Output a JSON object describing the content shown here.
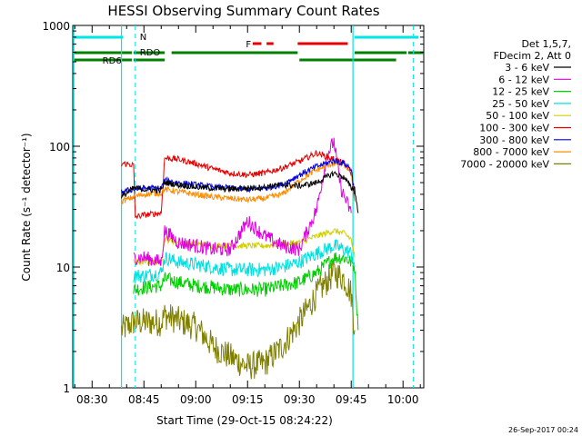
{
  "chart_data": {
    "type": "line",
    "title": "HESSI Observing Summary Count Rates",
    "xlabel": "Start Time (29-Oct-15 08:24:22)",
    "ylabel": "Count Rate (s⁻¹ detector⁻¹)",
    "x_ticks": [
      "08:30",
      "08:45",
      "09:00",
      "09:15",
      "09:30",
      "09:45",
      "10:00"
    ],
    "x_tick_minutes": [
      30,
      45,
      60,
      75,
      90,
      105,
      120
    ],
    "xlim_minutes": [
      24.4,
      126
    ],
    "y_scale": "log",
    "ylim": [
      1,
      1000
    ],
    "y_ticks": [
      "1",
      "10",
      "100",
      "1000"
    ],
    "legend_header": [
      "Det 1,5,7,",
      "FDecim 2, Att 0"
    ],
    "legend_position": "right",
    "timestamp": "26-Sep-2017 00:24",
    "flag_labels": {
      "night": "N",
      "flare": "F",
      "rdo": "RDO",
      "rd6": "RD6"
    },
    "flag_colors": {
      "night": "#00e5e5",
      "flare": "#e60000",
      "rdo": "#008000"
    },
    "night_segments": [
      [
        24.4,
        39
      ],
      [
        106,
        124.5
      ]
    ],
    "flare_segments": [
      [
        76.5,
        79
      ],
      [
        80.5,
        82.5
      ],
      [
        89.5,
        104
      ]
    ],
    "rdo_segments": [
      [
        24.4,
        41.5
      ],
      [
        42,
        51
      ],
      [
        53,
        89.5
      ],
      [
        106,
        121
      ],
      [
        121.5,
        126
      ]
    ],
    "rd6_segments": [
      [
        24.4,
        41.5
      ],
      [
        42,
        51
      ],
      [
        90,
        118
      ]
    ],
    "night_gap_lines": [
      38.5,
      105.5
    ],
    "dashed_lines": [
      42.5,
      123
    ],
    "series": [
      {
        "name": "3 - 6 keV",
        "color": "#000000",
        "x": [
          38.5,
          42,
          45,
          50,
          51,
          55,
          60,
          65,
          70,
          75,
          80,
          85,
          90,
          95,
          100,
          103,
          105,
          106,
          107
        ],
        "y": [
          38,
          45,
          44,
          43,
          50,
          48,
          46,
          45,
          44,
          45,
          46,
          48,
          47,
          50,
          60,
          55,
          45,
          45,
          28
        ]
      },
      {
        "name": "6 - 12 keV",
        "color": "#e000e0",
        "x": [
          42,
          45,
          50,
          51,
          55,
          60,
          65,
          70,
          75,
          80,
          85,
          90,
          95,
          98,
          100,
          102,
          105
        ],
        "y": [
          12,
          12,
          11,
          20,
          16,
          15,
          14,
          14,
          24,
          18,
          15,
          14,
          30,
          85,
          110,
          45,
          28
        ]
      },
      {
        "name": "12 - 25 keV",
        "color": "#00d000",
        "x": [
          42,
          45,
          50,
          51,
          55,
          60,
          65,
          70,
          75,
          80,
          85,
          90,
          95,
          100,
          103,
          105,
          106,
          107
        ],
        "y": [
          6.5,
          6.8,
          7.0,
          8.0,
          7.5,
          7.0,
          6.8,
          6.5,
          6.5,
          6.5,
          7.0,
          7.5,
          9,
          12,
          12,
          11,
          10,
          3
        ]
      },
      {
        "name": "25 - 50 keV",
        "color": "#00e0e0",
        "x": [
          42,
          45,
          50,
          51,
          55,
          60,
          65,
          70,
          75,
          80,
          85,
          90,
          95,
          100,
          103,
          105,
          106
        ],
        "y": [
          8.5,
          8.5,
          9,
          12,
          11,
          10.5,
          10,
          9.5,
          9.5,
          9.5,
          10,
          11,
          13,
          15,
          14,
          13,
          10
        ]
      },
      {
        "name": "50 - 100 keV",
        "color": "#d0d000",
        "x": [
          42,
          45,
          50,
          51,
          55,
          60,
          65,
          70,
          75,
          80,
          85,
          90,
          95,
          100,
          103,
          105,
          106
        ],
        "y": [
          11,
          11,
          11,
          17,
          16,
          15.5,
          15,
          15,
          15,
          15,
          15.5,
          16,
          18,
          20,
          19,
          17,
          12
        ]
      },
      {
        "name": "100 - 300 keV",
        "color": "#e60000",
        "x": [
          38.5,
          39,
          42,
          42.5,
          45,
          50,
          51,
          55,
          60,
          65,
          70,
          75,
          80,
          85,
          90,
          95,
          100,
          103,
          105,
          106
        ],
        "y": [
          70,
          72,
          70,
          26,
          27,
          28,
          80,
          78,
          72,
          65,
          60,
          58,
          60,
          66,
          75,
          88,
          78,
          72,
          60,
          35
        ]
      },
      {
        "name": "300 - 800 keV",
        "color": "#0000e0",
        "x": [
          38.5,
          42,
          45,
          50,
          51,
          55,
          60,
          65,
          70,
          75,
          80,
          85,
          90,
          95,
          100,
          103,
          105,
          106
        ],
        "y": [
          42,
          44,
          45,
          45,
          52,
          50,
          48,
          46,
          45,
          44,
          45,
          48,
          58,
          68,
          76,
          72,
          65,
          40
        ]
      },
      {
        "name": "800 - 7000 keV",
        "color": "#ff8c00",
        "x": [
          38.5,
          42,
          45,
          50,
          51,
          55,
          60,
          65,
          70,
          75,
          80,
          85,
          90,
          95,
          100,
          103,
          105,
          106
        ],
        "y": [
          35,
          38,
          40,
          41,
          44,
          42,
          40,
          38,
          37,
          36,
          37,
          40,
          52,
          64,
          72,
          70,
          62,
          35
        ]
      },
      {
        "name": "7000 - 20000 keV",
        "color": "#808000",
        "x": [
          38.5,
          42,
          45,
          50,
          51,
          55,
          60,
          62,
          65,
          70,
          75,
          80,
          85,
          90,
          95,
          100,
          103,
          105,
          106
        ],
        "y": [
          3,
          3.5,
          3.5,
          3.5,
          4,
          3.6,
          3.2,
          2.8,
          2.2,
          1.8,
          1.5,
          1.6,
          2.2,
          3.5,
          6,
          9,
          8,
          6,
          3
        ]
      }
    ]
  }
}
